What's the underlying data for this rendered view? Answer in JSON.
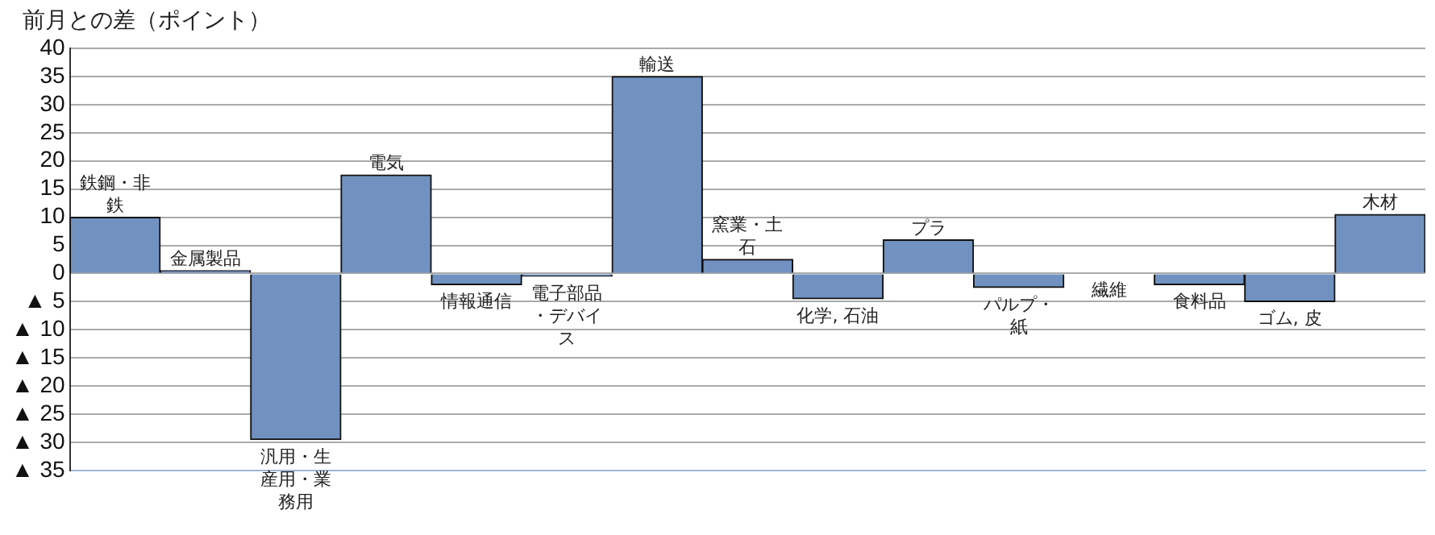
{
  "chart_data": {
    "type": "bar",
    "ylabel": "前月との差（ポイント）",
    "categories": [
      "鉄鋼・非鉄",
      "金属製品",
      "汎用・生産用・業務用",
      "電気",
      "情報通信",
      "電子部品・デバイス",
      "輸送",
      "窯業・土石",
      "化学, 石油",
      "プラ",
      "パルプ・紙",
      "繊維",
      "食料品",
      "ゴム, 皮",
      "木材"
    ],
    "values": [
      10,
      0.5,
      -29.5,
      17.5,
      -2,
      -0.5,
      35,
      2.5,
      -4.5,
      6,
      -2.5,
      0,
      -2,
      -5,
      10.5
    ],
    "color": "#7192c0",
    "ylim": [
      -35,
      40
    ],
    "yticks": [
      40,
      35,
      30,
      25,
      20,
      15,
      10,
      5,
      0,
      {
        "value": -5,
        "label": "▲ 5"
      },
      {
        "value": -10,
        "label": "▲ 10"
      },
      {
        "value": -15,
        "label": "▲ 15"
      },
      {
        "value": -20,
        "label": "▲ 20"
      },
      {
        "value": -25,
        "label": "▲ 25"
      },
      {
        "value": -30,
        "label": "▲ 30"
      },
      {
        "value": -35,
        "label": "▲ 35"
      }
    ],
    "grid": "y"
  }
}
